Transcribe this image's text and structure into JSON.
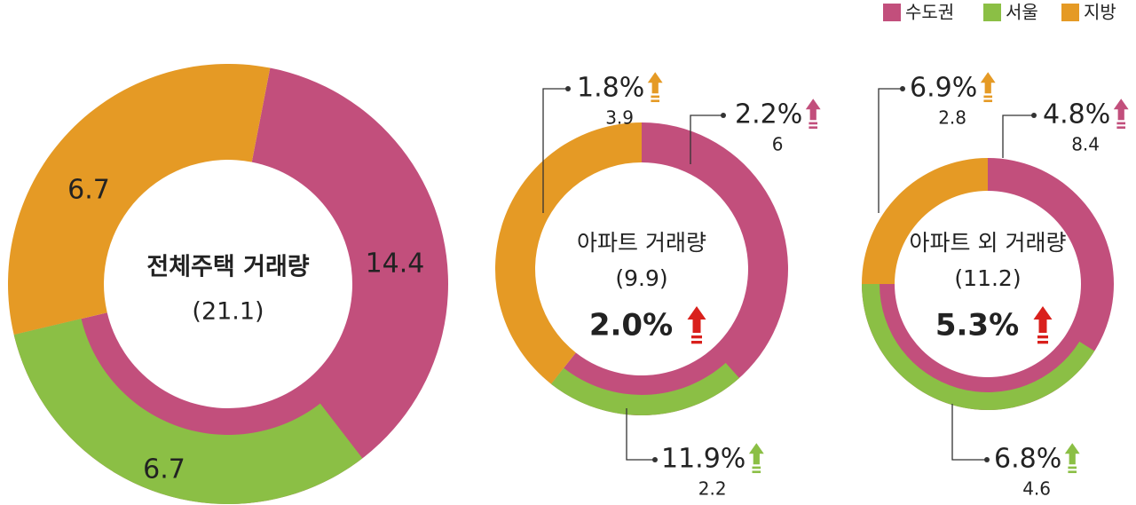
{
  "legend": [
    {
      "name": "수도권",
      "color": "#c24f7c"
    },
    {
      "name": "서울",
      "color": "#8bbf45"
    },
    {
      "name": "지방",
      "color": "#e59a25"
    }
  ],
  "chart_data": [
    {
      "type": "donut",
      "title": "전체주택 거래량",
      "subtitle": "(21.1)",
      "categories": [
        "수도권",
        "서울",
        "지방"
      ],
      "colors": [
        "#c24f7c",
        "#8bbf45",
        "#e59a25"
      ],
      "values": [
        14.4,
        6.7,
        6.7
      ]
    },
    {
      "type": "donut",
      "title": "아파트 거래량",
      "subtitle": "(9.9)",
      "change": "2.0%",
      "categories": [
        "수도권",
        "서울",
        "지방"
      ],
      "colors": [
        "#c24f7c",
        "#8bbf45",
        "#e59a25"
      ],
      "values": [
        6.0,
        2.2,
        3.9
      ],
      "changes": [
        "2.2%",
        "11.9%",
        "1.8%"
      ]
    },
    {
      "type": "donut",
      "title": "아파트 외 거래량",
      "subtitle": "(11.2)",
      "change": "5.3%",
      "categories": [
        "수도권",
        "서울",
        "지방"
      ],
      "colors": [
        "#c24f7c",
        "#8bbf45",
        "#e59a25"
      ],
      "values": [
        8.4,
        4.6,
        2.8
      ],
      "changes": [
        "4.8%",
        "6.8%",
        "6.9%"
      ]
    }
  ]
}
